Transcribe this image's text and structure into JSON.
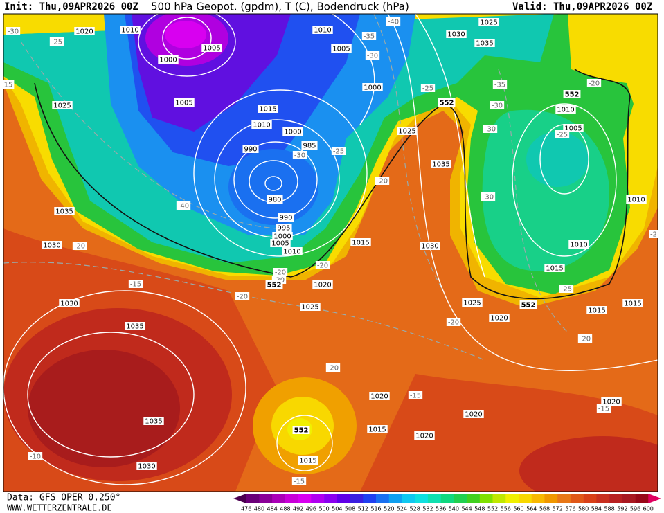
{
  "header": {
    "init": "Init: Thu,09APR2026 00Z",
    "title": "500 hPa Geopot. (gpdm), T (C), Bodendruck (hPa)",
    "valid": "Valid: Thu,09APR2026 00Z"
  },
  "footer": {
    "source": "Data: GFS OPER 0.250°",
    "site": "WWW.WETTERZENTRALE.DE"
  },
  "map": {
    "isobar_labels": [
      1020,
      1010,
      1005,
      1000,
      1025,
      1005,
      1015,
      1010,
      1000,
      985,
      990,
      980,
      990,
      995,
      1000,
      1005,
      1010,
      1010,
      1005,
      1000,
      1030,
      1025,
      1035,
      1025,
      1035,
      1035,
      1030,
      1015,
      1030,
      1020,
      1025,
      1030,
      1035,
      1035,
      1030,
      1010,
      1005,
      1010,
      1010,
      1015,
      1025,
      1020,
      1015,
      1015,
      1020,
      1020,
      1020,
      1015,
      1015,
      1020
    ],
    "temperature_labels": [
      -30,
      -25,
      -35,
      -30,
      -40,
      -25,
      -35,
      -30,
      -30,
      -25,
      -20,
      -25,
      -30,
      -20,
      -40,
      -30,
      -20,
      -20,
      -20,
      -20,
      -15,
      -20,
      -20,
      -25,
      -20,
      -20,
      -15,
      -15,
      -10,
      -15,
      15,
      -2
    ],
    "contour_552_labels": [
      552,
      552,
      552,
      552,
      552
    ]
  },
  "colorbar": {
    "levels": [
      476,
      480,
      484,
      488,
      492,
      496,
      500,
      504,
      508,
      512,
      516,
      520,
      524,
      528,
      532,
      536,
      540,
      544,
      548,
      552,
      556,
      560,
      564,
      568,
      572,
      576,
      580,
      584,
      588,
      592,
      596,
      600
    ],
    "colors": [
      "#4b0050",
      "#6a0078",
      "#8a0098",
      "#aa00b8",
      "#c800d8",
      "#d800f0",
      "#b000f0",
      "#8a00f0",
      "#6000e8",
      "#3a20e0",
      "#2040f0",
      "#1a70f0",
      "#10a0f0",
      "#10c8f0",
      "#10e0e0",
      "#10e0b0",
      "#10d880",
      "#20d050",
      "#40d020",
      "#80e000",
      "#c0e800",
      "#f0f000",
      "#f8d800",
      "#f8b800",
      "#f09800",
      "#e87818",
      "#e05818",
      "#d84018",
      "#c83020",
      "#b82020",
      "#a81820",
      "#980818",
      "#e00060"
    ]
  }
}
